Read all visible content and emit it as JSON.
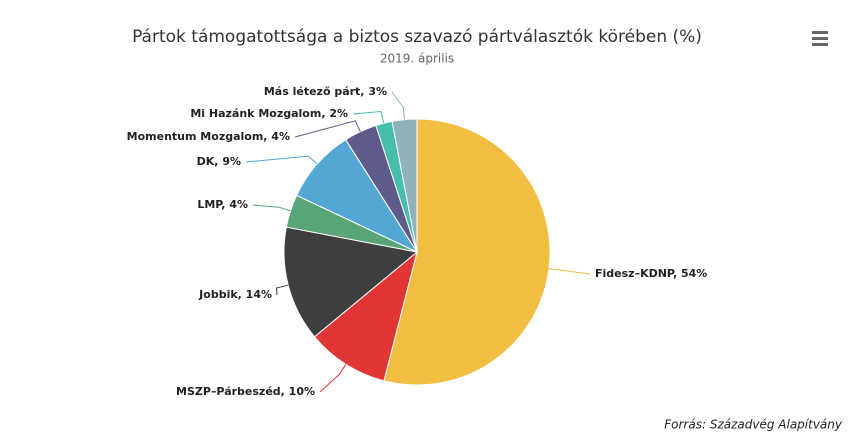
{
  "chart_data": {
    "type": "pie",
    "title": "Pártok támogatottsága a biztos szavazó pártválasztók körében (%)",
    "subtitle": "2019. április",
    "source": "Forrás: Századvég Alapítvány",
    "values": [
      54,
      10,
      14,
      4,
      9,
      4,
      2,
      3
    ],
    "value_labels": [
      "Fidesz–KDNP, 54%",
      "MSZP–Párbeszéd, 10%",
      "Jobbik, 14%",
      "LMP, 4%",
      "DK, 9%",
      "Momentum Mozgalom, 4%",
      "Mi Hazánk Mozgalom, 2%",
      "Más létező párt, 3%"
    ],
    "colors": [
      "#f1be41",
      "#e23636",
      "#3e3e3e",
      "#58a677",
      "#53a7d4",
      "#5f5c8c",
      "#47bea9",
      "#8eb3ba"
    ]
  }
}
